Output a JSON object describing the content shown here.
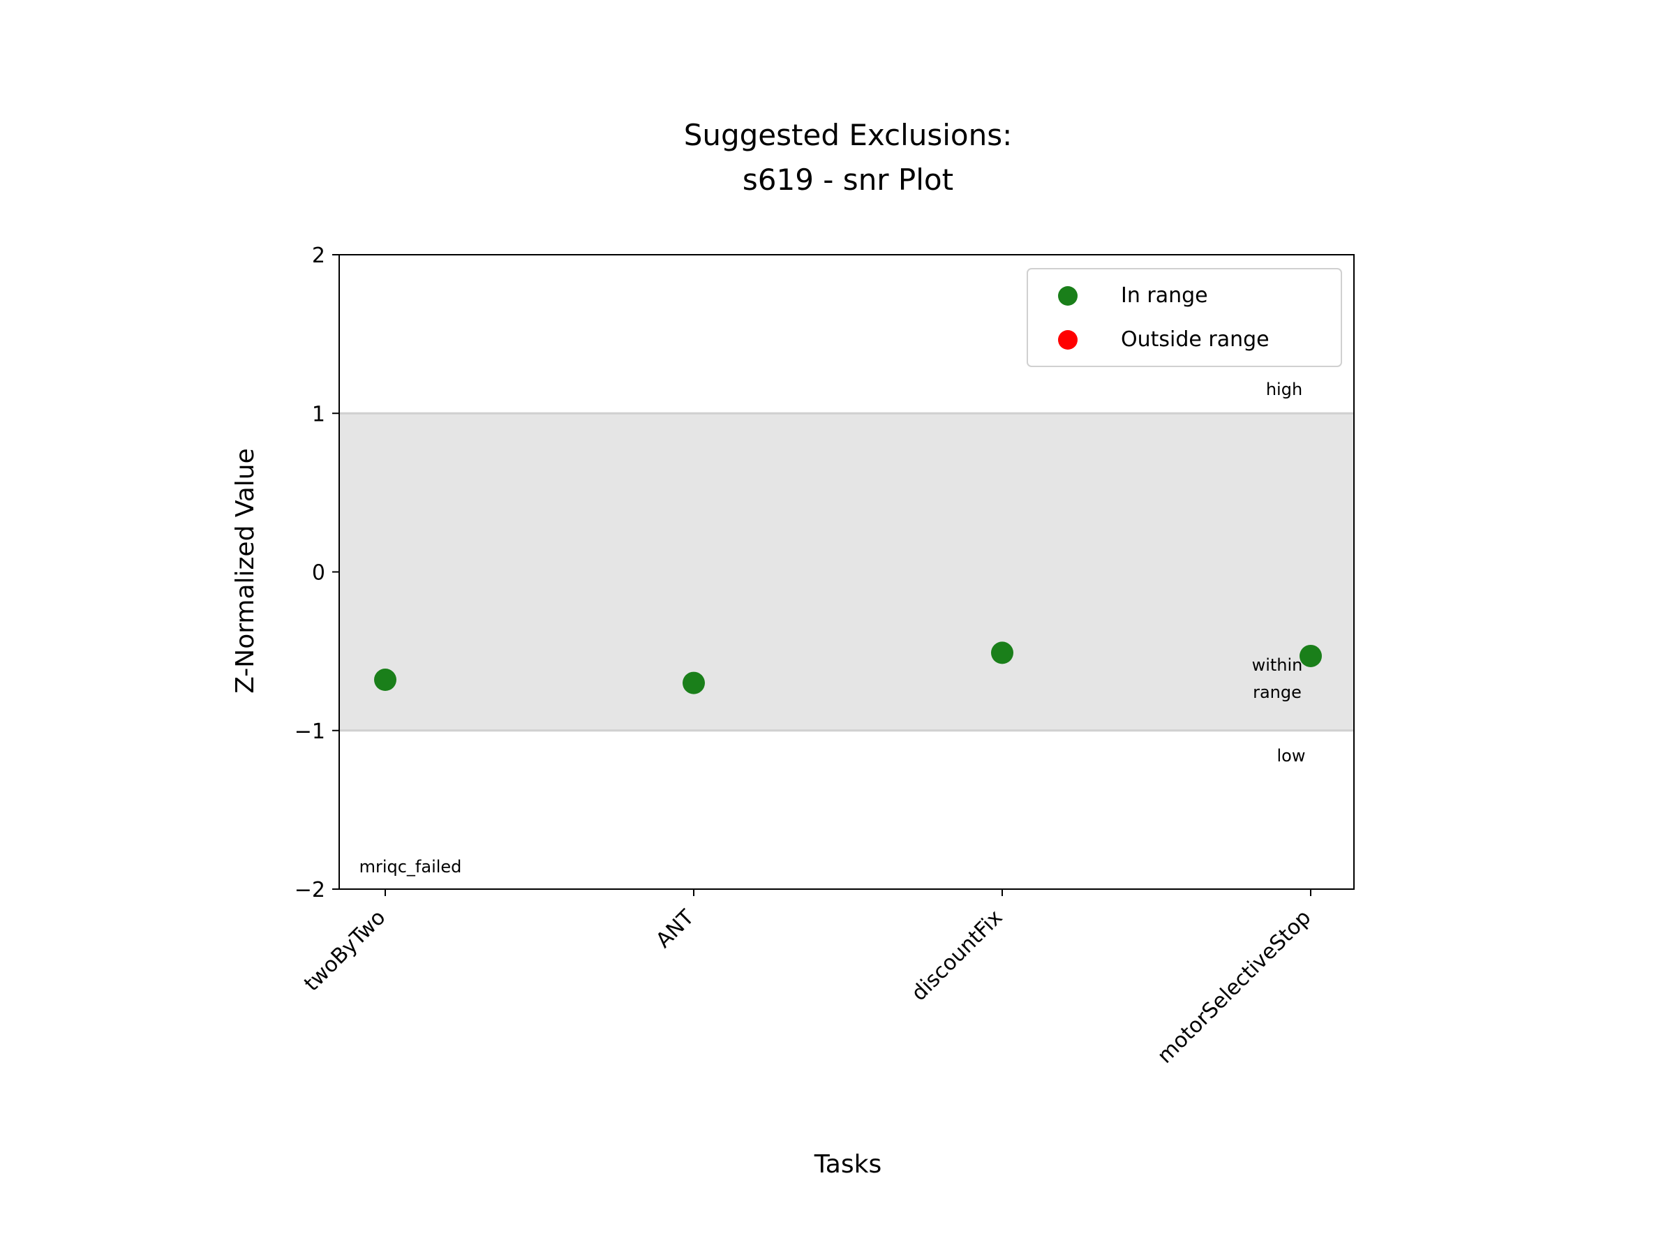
{
  "chart_data": {
    "type": "scatter",
    "title_line1": "Suggested Exclusions:",
    "title_line2": "s619 - snr Plot",
    "xlabel": "Tasks",
    "ylabel": "Z-Normalized Value",
    "categories": [
      "twoByTwo",
      "ANT",
      "discountFix",
      "motorSelectiveStop"
    ],
    "ylim": [
      -2,
      2
    ],
    "yticks": [
      -2,
      -1,
      0,
      1,
      2
    ],
    "ytick_labels": [
      "−2",
      "−1",
      "0",
      "1",
      "2"
    ],
    "range_band": [
      -1,
      1
    ],
    "series": [
      {
        "name": "In range",
        "color": "#1a7f1a",
        "x": [
          "twoByTwo",
          "ANT",
          "discountFix",
          "motorSelectiveStop"
        ],
        "y": [
          -0.68,
          -0.7,
          -0.51,
          -0.53
        ]
      },
      {
        "name": "Outside range",
        "color": "#ff0000",
        "x": [],
        "y": []
      }
    ],
    "legend_position": "top-right",
    "annotations": {
      "high": "high",
      "within_line1": "within",
      "within_line2": "range",
      "low": "low",
      "failed": "mriqc_failed"
    },
    "grid": false
  }
}
